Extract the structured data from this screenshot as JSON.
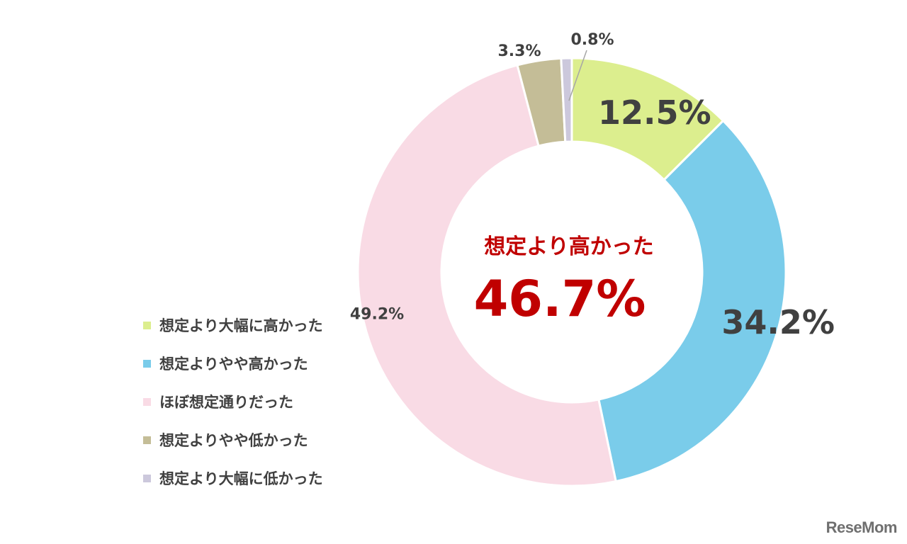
{
  "chart_data": {
    "type": "donut",
    "title": "",
    "center_label": "想定より高かった",
    "center_value": "46.7%",
    "categories": [
      "想定より大幅に高かった",
      "想定よりやや高かった",
      "ほぼ想定通りだった",
      "想定よりやや低かった",
      "想定より大幅に低かった"
    ],
    "values": [
      12.5,
      34.2,
      49.2,
      3.3,
      0.8
    ],
    "value_labels": [
      "12.5%",
      "34.2%",
      "49.2%",
      "3.3%",
      "0.8%"
    ],
    "colors": [
      "#dcee8e",
      "#7accea",
      "#f9dbe5",
      "#c4bd97",
      "#ccc8dc"
    ],
    "center_label_color": "#c00000",
    "label_color": "#404040",
    "legend_position": "left"
  },
  "watermark": "ReseMom"
}
